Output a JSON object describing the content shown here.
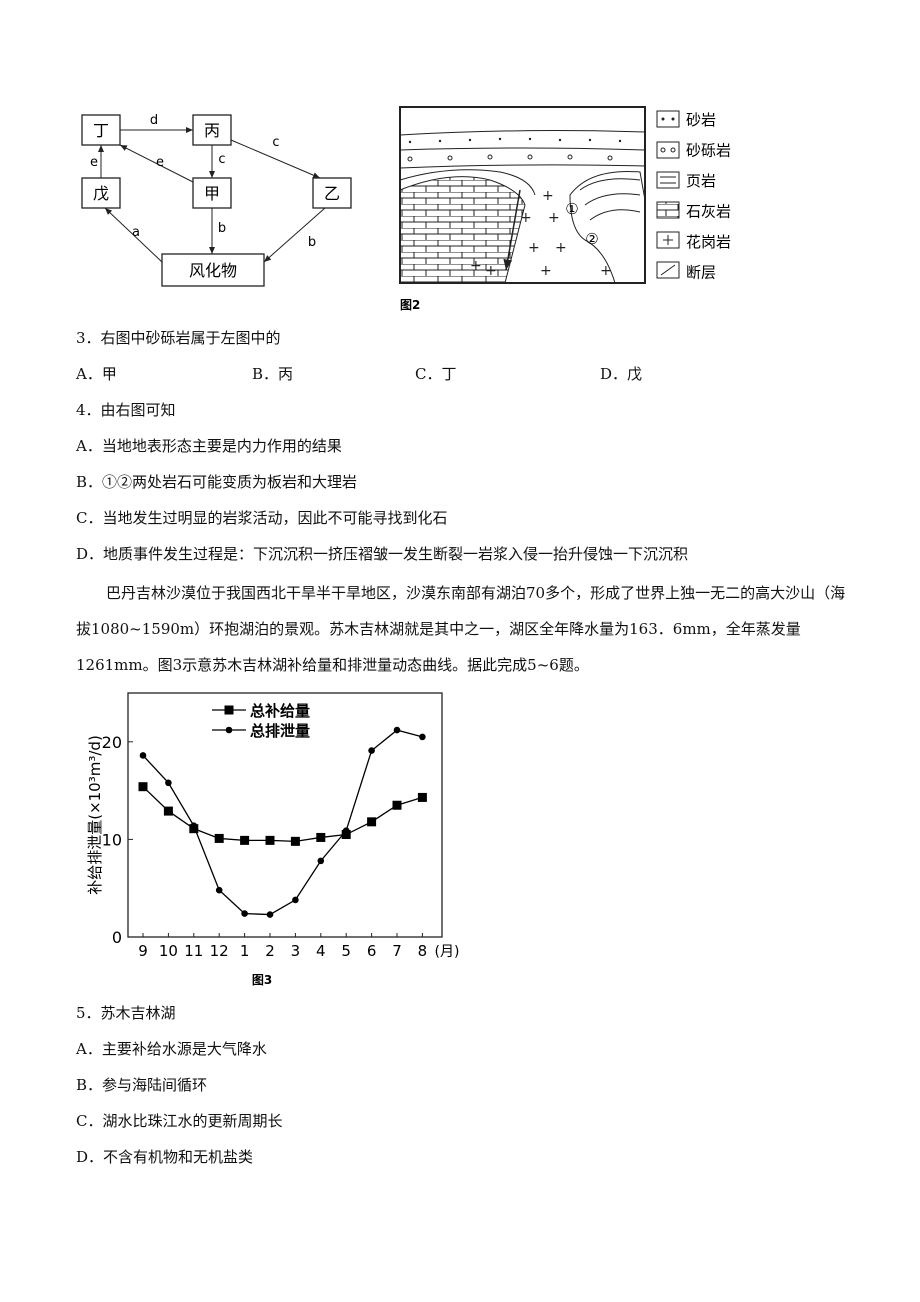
{
  "figure1": {
    "nodes": [
      "丁",
      "丙",
      "戊",
      "甲",
      "乙",
      "风化物"
    ],
    "edges": [
      "d",
      "c",
      "e",
      "e",
      "c",
      "a",
      "b",
      "b"
    ]
  },
  "figure2": {
    "legend": [
      "砂岩",
      "砂砾岩",
      "页岩",
      "石灰岩",
      "花岗岩",
      "断层"
    ],
    "markers": [
      "①",
      "②"
    ],
    "caption": "图2"
  },
  "questions": [
    {
      "stem": "3．右图中砂砾岩属于左图中的",
      "options": [
        "A．甲",
        "B．丙",
        "C．丁",
        "D．戊"
      ]
    },
    {
      "stem": "4．由右图可知",
      "options": [
        "A．当地地表形态主要是内力作用的结果",
        "B．①②两处岩石可能变质为板岩和大理岩",
        "C．当地发生过明显的岩浆活动，因此不可能寻找到化石",
        "D．地质事件发生过程是：下沉沉积一挤压褶皱一发生断裂一岩浆入侵一抬升侵蚀一下沉沉积"
      ]
    },
    {
      "stem": "5．苏木吉林湖",
      "options": [
        "A．主要补给水源是大气降水",
        "B．参与海陆间循环",
        "C．湖水比珠江水的更新周期长",
        "D．不含有机物和无机盐类"
      ]
    }
  ],
  "passage": "巴丹吉林沙漠位于我国西北干旱半干旱地区，沙漠东南部有湖泊70多个，形成了世界上独一无二的高大沙山（海拔1080~1590m）环抱湖泊的景观。苏木吉林湖就是其中之一，湖区全年降水量为163．6mm，全年蒸发量1261mm。图3示意苏木吉林湖补给量和排泄量动态曲线。据此完成5~6题。",
  "chart_data": {
    "type": "line",
    "caption": "图3",
    "y_label": "补给排泄量(×10³m³/d)",
    "x_label": "(月)",
    "categories": [
      "9",
      "10",
      "11",
      "12",
      "1",
      "2",
      "3",
      "4",
      "5",
      "6",
      "7",
      "8"
    ],
    "series": [
      {
        "name": "总补给量",
        "color": "#000000",
        "marker": "square",
        "values": [
          15.4,
          12.9,
          11.1,
          10.1,
          9.9,
          9.9,
          9.8,
          10.2,
          10.5,
          11.8,
          13.5,
          14.3
        ]
      },
      {
        "name": "总排泄量",
        "color": "#000000",
        "marker": "circle",
        "values": [
          18.6,
          15.8,
          11.4,
          4.8,
          2.4,
          2.3,
          3.8,
          7.8,
          10.9,
          19.1,
          21.2,
          20.5
        ]
      }
    ],
    "ylim": [
      0,
      25
    ],
    "yticks": [
      0,
      10,
      20
    ]
  }
}
